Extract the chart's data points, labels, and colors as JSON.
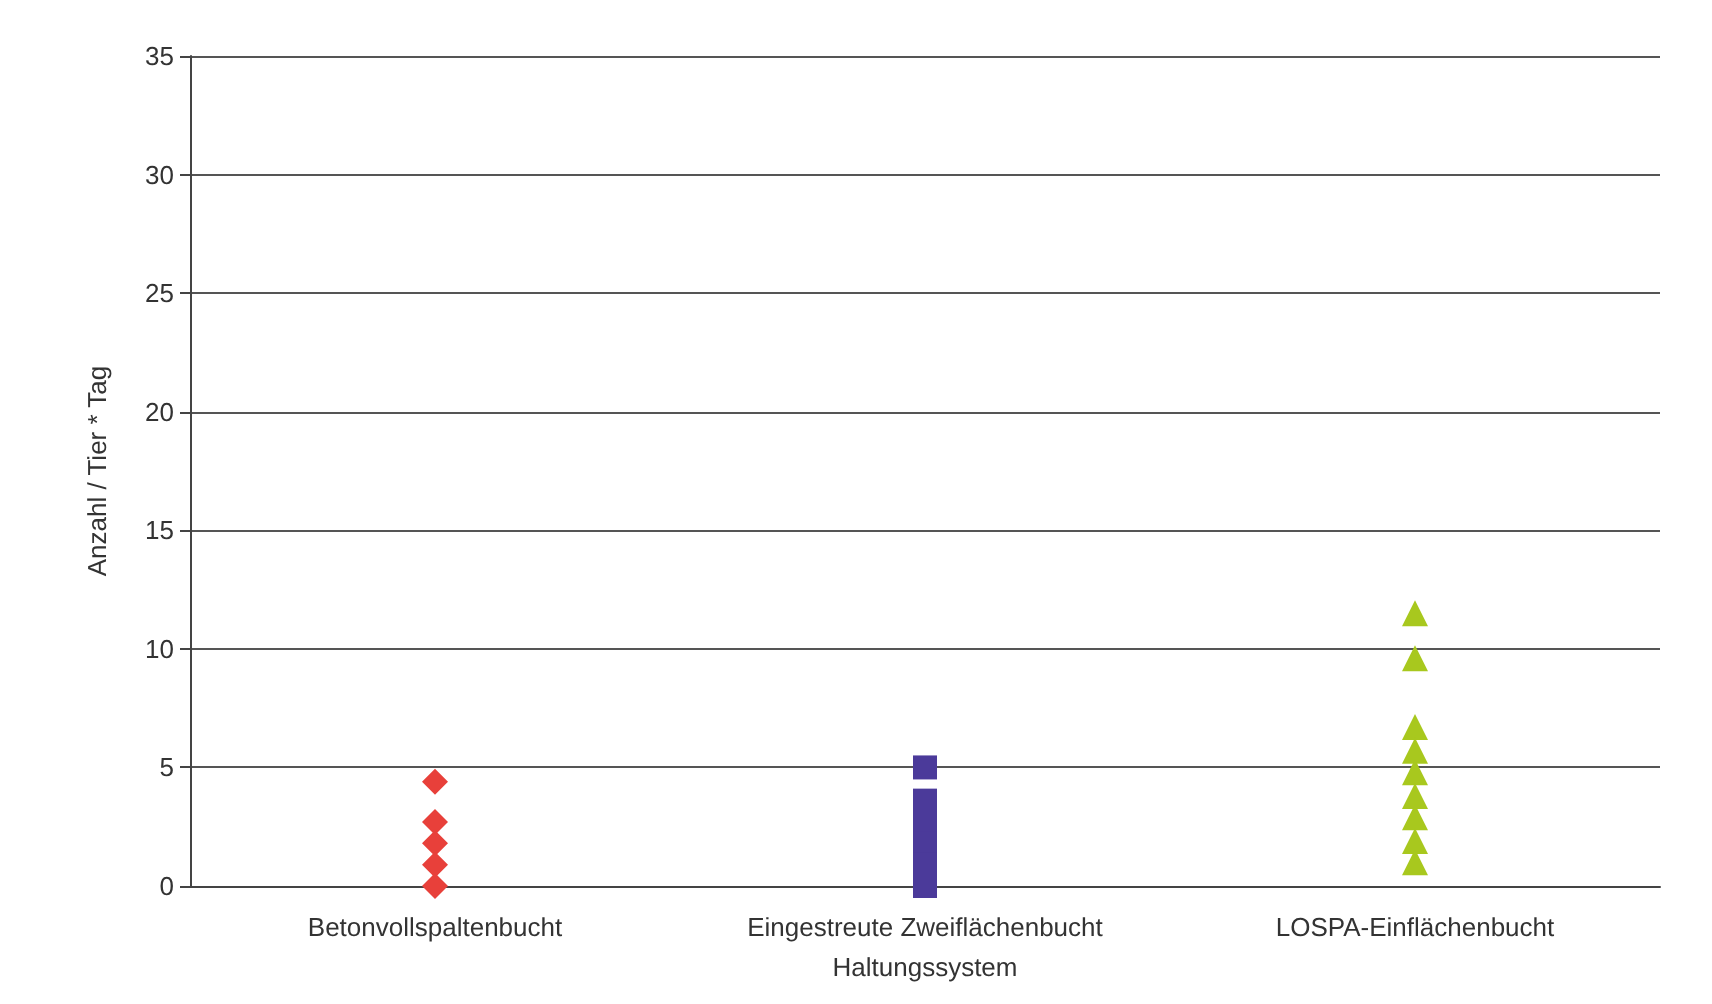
{
  "chart_data": {
    "type": "scatter",
    "xlabel": "Haltungssystem",
    "ylabel": "Anzahl / Tier * Tag",
    "categories": [
      "Betonvollspaltenbucht",
      "Eingestreute Zweiflächenbucht",
      "LOSPA-Einflächenbucht"
    ],
    "series": [
      {
        "color": "#e8403a",
        "marker": "diamond",
        "x": [
          "Betonvollspaltenbucht",
          "Betonvollspaltenbucht",
          "Betonvollspaltenbucht",
          "Betonvollspaltenbucht",
          "Betonvollspaltenbucht"
        ],
        "values": [
          4.4,
          2.7,
          1.8,
          0.9,
          0
        ]
      },
      {
        "color": "#4b3a9a",
        "marker": "square",
        "x": [
          "Eingestreute Zweiflächenbucht",
          "Eingestreute Zweiflächenbucht",
          "Eingestreute Zweiflächenbucht",
          "Eingestreute Zweiflächenbucht",
          "Eingestreute Zweiflächenbucht",
          "Eingestreute Zweiflächenbucht"
        ],
        "values": [
          5.0,
          3.6,
          2.7,
          1.8,
          0.9,
          0
        ]
      },
      {
        "color": "#a8c81e",
        "marker": "triangle",
        "x": [
          "LOSPA-Einflächenbucht",
          "LOSPA-Einflächenbucht",
          "LOSPA-Einflächenbucht",
          "LOSPA-Einflächenbucht",
          "LOSPA-Einflächenbucht",
          "LOSPA-Einflächenbucht",
          "LOSPA-Einflächenbucht",
          "LOSPA-Einflächenbucht",
          "LOSPA-Einflächenbucht"
        ],
        "values": [
          11.5,
          9.6,
          6.7,
          5.7,
          4.8,
          3.8,
          2.9,
          1.9,
          1.0
        ]
      }
    ],
    "ylim": [
      0,
      35
    ],
    "yticks": [
      0,
      5,
      10,
      15,
      20,
      25,
      30,
      35
    ],
    "grid": "y"
  }
}
